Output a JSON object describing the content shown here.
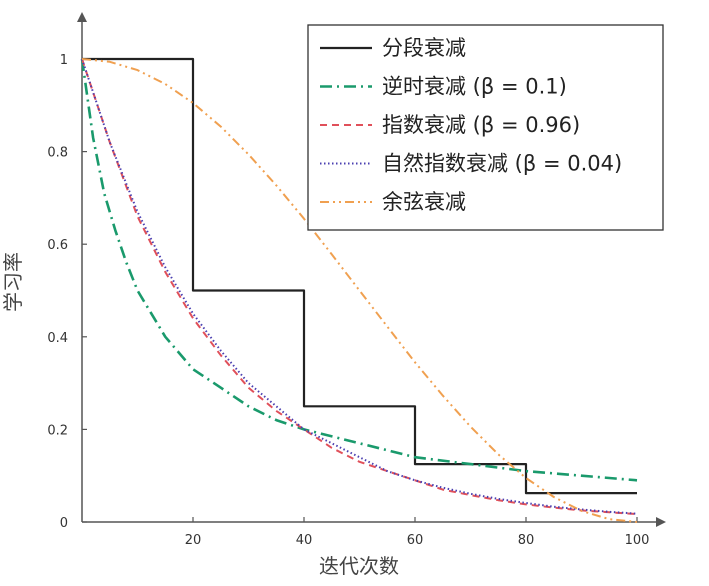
{
  "chart_data": {
    "type": "line",
    "xlabel": "迭代次数",
    "ylabel": "学习率",
    "xlim": [
      0,
      100
    ],
    "ylim": [
      0,
      1
    ],
    "xticks": [
      20,
      40,
      60,
      80,
      100
    ],
    "yticks": [
      0,
      0.2,
      0.4,
      0.6,
      0.8,
      1
    ],
    "grid": false,
    "legend_position": "top-right",
    "series": [
      {
        "name": "分段衰减",
        "color": "#222222",
        "dash": "solid",
        "x": [
          0,
          20,
          20,
          40,
          40,
          60,
          60,
          80,
          80,
          100
        ],
        "y": [
          1,
          1,
          0.5,
          0.5,
          0.25,
          0.25,
          0.125,
          0.125,
          0.0625,
          0.0625
        ]
      },
      {
        "name": "逆时衰减 (β = 0.1)",
        "color": "#1a9a6c",
        "dash": "dashdot",
        "x": [
          0,
          2,
          4,
          6,
          8,
          10,
          15,
          20,
          25,
          30,
          35,
          40,
          50,
          60,
          70,
          80,
          90,
          100
        ],
        "y": [
          1,
          0.83,
          0.71,
          0.63,
          0.56,
          0.5,
          0.4,
          0.33,
          0.29,
          0.25,
          0.22,
          0.2,
          0.17,
          0.14,
          0.125,
          0.11,
          0.1,
          0.09
        ]
      },
      {
        "name": "指数衰减 (β = 0.96)",
        "color": "#e0505a",
        "dash": "dashed",
        "x": [
          0,
          5,
          10,
          15,
          20,
          25,
          30,
          35,
          40,
          45,
          50,
          55,
          60,
          65,
          70,
          75,
          80,
          85,
          90,
          95,
          100
        ],
        "y": [
          1,
          0.82,
          0.66,
          0.54,
          0.44,
          0.36,
          0.29,
          0.24,
          0.2,
          0.16,
          0.13,
          0.11,
          0.09,
          0.07,
          0.058,
          0.047,
          0.038,
          0.031,
          0.025,
          0.021,
          0.017
        ]
      },
      {
        "name": "自然指数衰减 (β = 0.04)",
        "color": "#4a3fb0",
        "dash": "dotted",
        "x": [
          0,
          5,
          10,
          15,
          20,
          25,
          30,
          35,
          40,
          45,
          50,
          55,
          60,
          65,
          70,
          75,
          80,
          85,
          90,
          95,
          100
        ],
        "y": [
          1,
          0.82,
          0.67,
          0.55,
          0.45,
          0.37,
          0.3,
          0.25,
          0.2,
          0.17,
          0.14,
          0.11,
          0.09,
          0.074,
          0.061,
          0.05,
          0.041,
          0.033,
          0.027,
          0.022,
          0.018
        ]
      },
      {
        "name": "余弦衰减",
        "color": "#f0a050",
        "dash": "dashdotdot",
        "x": [
          0,
          5,
          10,
          15,
          20,
          25,
          30,
          35,
          40,
          45,
          50,
          55,
          60,
          65,
          70,
          75,
          80,
          85,
          90,
          95,
          100
        ],
        "y": [
          1,
          0.994,
          0.976,
          0.946,
          0.905,
          0.854,
          0.794,
          0.727,
          0.655,
          0.578,
          0.5,
          0.422,
          0.345,
          0.273,
          0.206,
          0.146,
          0.095,
          0.054,
          0.024,
          0.006,
          0
        ]
      }
    ]
  }
}
